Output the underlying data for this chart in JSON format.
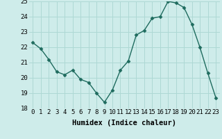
{
  "x": [
    0,
    1,
    2,
    3,
    4,
    5,
    6,
    7,
    8,
    9,
    10,
    11,
    12,
    13,
    14,
    15,
    16,
    17,
    18,
    19,
    20,
    21,
    22,
    23
  ],
  "y": [
    22.3,
    21.9,
    21.2,
    20.4,
    20.2,
    20.5,
    19.9,
    19.7,
    19.0,
    18.4,
    19.2,
    20.5,
    21.1,
    22.8,
    23.1,
    23.9,
    24.0,
    25.0,
    24.9,
    24.6,
    23.5,
    22.0,
    20.3,
    18.7
  ],
  "line_color": "#1e6b5e",
  "marker": "D",
  "marker_size": 2.5,
  "bg_color": "#ceecea",
  "grid_color": "#aed8d4",
  "xlabel": "Humidex (Indice chaleur)",
  "ylim": [
    18,
    25
  ],
  "xlim": [
    -0.5,
    23.5
  ],
  "yticks": [
    18,
    19,
    20,
    21,
    22,
    23,
    24,
    25
  ],
  "xticks": [
    0,
    1,
    2,
    3,
    4,
    5,
    6,
    7,
    8,
    9,
    10,
    11,
    12,
    13,
    14,
    15,
    16,
    17,
    18,
    19,
    20,
    21,
    22,
    23
  ],
  "tick_fontsize": 6.5,
  "label_fontsize": 7.5
}
